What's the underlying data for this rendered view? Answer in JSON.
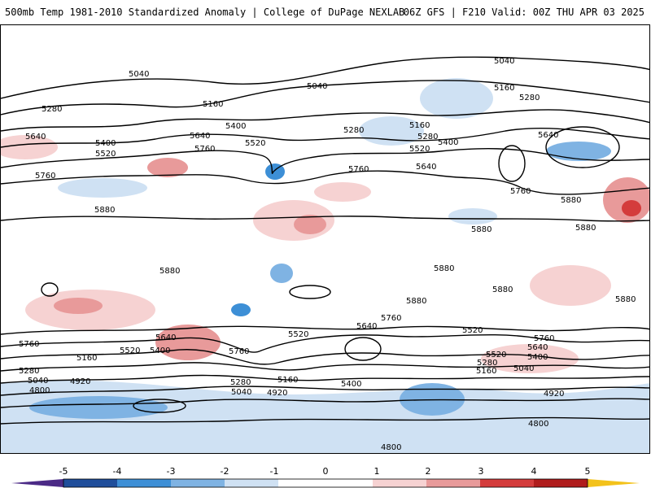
{
  "header": {
    "title": "500mb Temp 1981-2010 Standardized Anomaly | College of DuPage NEXLAB",
    "run_info": "06Z GFS | F210 Valid: 00Z THU APR 03 2025"
  },
  "map": {
    "contour_labels": [
      "5040",
      "5040",
      "5040",
      "5160",
      "5280",
      "5160",
      "5280",
      "5400",
      "5640",
      "5520",
      "5760",
      "5400",
      "5520",
      "5640",
      "5760",
      "5280",
      "5160",
      "5400",
      "5520",
      "5280",
      "5640",
      "5760",
      "5640",
      "5880",
      "5880",
      "5760",
      "5880",
      "5880",
      "5880",
      "5880",
      "5880",
      "5880",
      "5880",
      "5760",
      "5640",
      "5520",
      "5640",
      "5760",
      "5520",
      "5400",
      "5760",
      "5160",
      "5280",
      "5040",
      "4920",
      "5520",
      "5160",
      "5280",
      "5040",
      "4800",
      "4920",
      "5400",
      "5280",
      "5160",
      "5040",
      "4920",
      "4800",
      "4800",
      "5640",
      "5400",
      "5520",
      "5760"
    ],
    "colors": {
      "neg5": "#4b2a86",
      "neg4": "#1f4e9b",
      "neg3": "#3d8fd6",
      "neg2": "#7fb3e3",
      "neg1": "#cfe1f3",
      "neutral": "#ffffff",
      "pos1": "#f6d2d2",
      "pos2": "#e89a9a",
      "pos3": "#d43c3c",
      "pos4": "#b01c1c",
      "pos5": "#7a0a0a",
      "over": "#f3c21b"
    }
  },
  "colorbar": {
    "ticks": [
      "-5",
      "-4",
      "-3",
      "-2",
      "-1",
      "0",
      "1",
      "2",
      "3",
      "4",
      "5"
    ]
  }
}
